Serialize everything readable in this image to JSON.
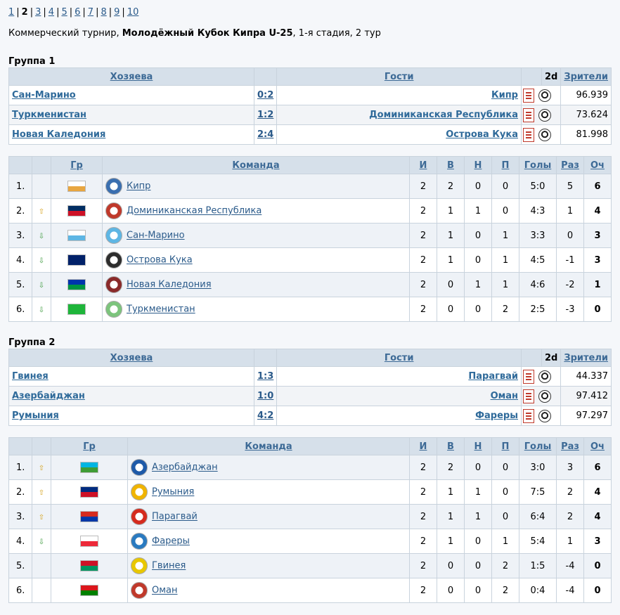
{
  "pager": {
    "pages": [
      "1",
      "2",
      "3",
      "4",
      "5",
      "6",
      "7",
      "8",
      "9",
      "10"
    ],
    "current": "2"
  },
  "subtitle": {
    "prefix": "Коммерческий турнир, ",
    "tournament": "Молодёжный Кубок Кипра U-25",
    "suffix": ", 1-я стадия, 2 тур"
  },
  "match_headers": {
    "home": "Хозяева",
    "away": "Гости",
    "d2": "2d",
    "attendance": "Зрители"
  },
  "standing_headers": {
    "group": "Гр",
    "team": "Команда",
    "played": "И",
    "won": "В",
    "drawn": "Н",
    "lost": "П",
    "goals": "Голы",
    "diff": "Раз",
    "points": "Оч"
  },
  "groups": [
    {
      "title": "Группа 1",
      "matches": [
        {
          "home": "Сан-Марино",
          "score": "0:2",
          "away": "Кипр",
          "attendance": "96.939"
        },
        {
          "home": "Туркменистан",
          "score": "1:2",
          "away": "Доминиканская Республика",
          "attendance": "73.624"
        },
        {
          "home": "Новая Каледония",
          "score": "2:4",
          "away": "Острова Кука",
          "attendance": "81.998"
        }
      ],
      "standings": [
        {
          "pos": "1.",
          "trend": "",
          "team": "Кипр",
          "flag": [
            "#ffffff",
            "#e8a640"
          ],
          "emblem": "#3a6fb0",
          "p": "2",
          "w": "2",
          "d": "0",
          "l": "0",
          "goals": "5:0",
          "diff": "5",
          "pts": "6"
        },
        {
          "pos": "2.",
          "trend": "up",
          "team": "Доминиканская Республика",
          "flag": [
            "#002d62",
            "#ce1126"
          ],
          "emblem": "#c0392b",
          "p": "2",
          "w": "1",
          "d": "1",
          "l": "0",
          "goals": "4:3",
          "diff": "1",
          "pts": "4"
        },
        {
          "pos": "3.",
          "trend": "down",
          "team": "Сан-Марино",
          "flag": [
            "#ffffff",
            "#5eb6e4"
          ],
          "emblem": "#5eb6e4",
          "p": "2",
          "w": "1",
          "d": "0",
          "l": "1",
          "goals": "3:3",
          "diff": "0",
          "pts": "3"
        },
        {
          "pos": "4.",
          "trend": "down",
          "team": "Острова Кука",
          "flag": [
            "#012169",
            "#012169"
          ],
          "emblem": "#2d2d2d",
          "p": "2",
          "w": "1",
          "d": "0",
          "l": "1",
          "goals": "4:5",
          "diff": "-1",
          "pts": "3"
        },
        {
          "pos": "5.",
          "trend": "down",
          "team": "Новая Каледония",
          "flag": [
            "#0035ad",
            "#009543"
          ],
          "emblem": "#8a2a2a",
          "p": "2",
          "w": "0",
          "d": "1",
          "l": "1",
          "goals": "4:6",
          "diff": "-2",
          "pts": "1"
        },
        {
          "pos": "6.",
          "trend": "down",
          "team": "Туркменистан",
          "flag": [
            "#1eb53a",
            "#1eb53a"
          ],
          "emblem": "#7cc47c",
          "p": "2",
          "w": "0",
          "d": "0",
          "l": "2",
          "goals": "2:5",
          "diff": "-3",
          "pts": "0"
        }
      ]
    },
    {
      "title": "Группа 2",
      "matches": [
        {
          "home": "Гвинея",
          "score": "1:3",
          "away": "Парагвай",
          "attendance": "44.337"
        },
        {
          "home": "Азербайджан",
          "score": "1:0",
          "away": "Оман",
          "attendance": "97.412"
        },
        {
          "home": "Румыния",
          "score": "4:2",
          "away": "Фареры",
          "attendance": "97.297"
        }
      ],
      "standings": [
        {
          "pos": "1.",
          "trend": "up",
          "team": "Азербайджан",
          "flag": [
            "#00b5e2",
            "#3f9c35"
          ],
          "emblem": "#1e5aa8",
          "p": "2",
          "w": "2",
          "d": "0",
          "l": "0",
          "goals": "3:0",
          "diff": "3",
          "pts": "6"
        },
        {
          "pos": "2.",
          "trend": "up",
          "team": "Румыния",
          "flag": [
            "#002b7f",
            "#ce1126"
          ],
          "emblem": "#f0b400",
          "p": "2",
          "w": "1",
          "d": "1",
          "l": "0",
          "goals": "7:5",
          "diff": "2",
          "pts": "4"
        },
        {
          "pos": "3.",
          "trend": "up",
          "team": "Парагвай",
          "flag": [
            "#d52b1e",
            "#0038a8"
          ],
          "emblem": "#d52b1e",
          "p": "2",
          "w": "1",
          "d": "1",
          "l": "0",
          "goals": "6:4",
          "diff": "2",
          "pts": "4"
        },
        {
          "pos": "4.",
          "trend": "down",
          "team": "Фареры",
          "flag": [
            "#ffffff",
            "#ed2939"
          ],
          "emblem": "#2a7ac0",
          "p": "2",
          "w": "1",
          "d": "0",
          "l": "1",
          "goals": "5:4",
          "diff": "1",
          "pts": "3"
        },
        {
          "pos": "5.",
          "trend": "",
          "team": "Гвинея",
          "flag": [
            "#ce1126",
            "#009460"
          ],
          "emblem": "#e8c700",
          "p": "2",
          "w": "0",
          "d": "0",
          "l": "2",
          "goals": "1:5",
          "diff": "-4",
          "pts": "0"
        },
        {
          "pos": "6.",
          "trend": "",
          "team": "Оман",
          "flag": [
            "#db161b",
            "#008000"
          ],
          "emblem": "#c0392b",
          "p": "2",
          "w": "0",
          "d": "0",
          "l": "2",
          "goals": "0:4",
          "diff": "-4",
          "pts": "0"
        }
      ]
    }
  ]
}
